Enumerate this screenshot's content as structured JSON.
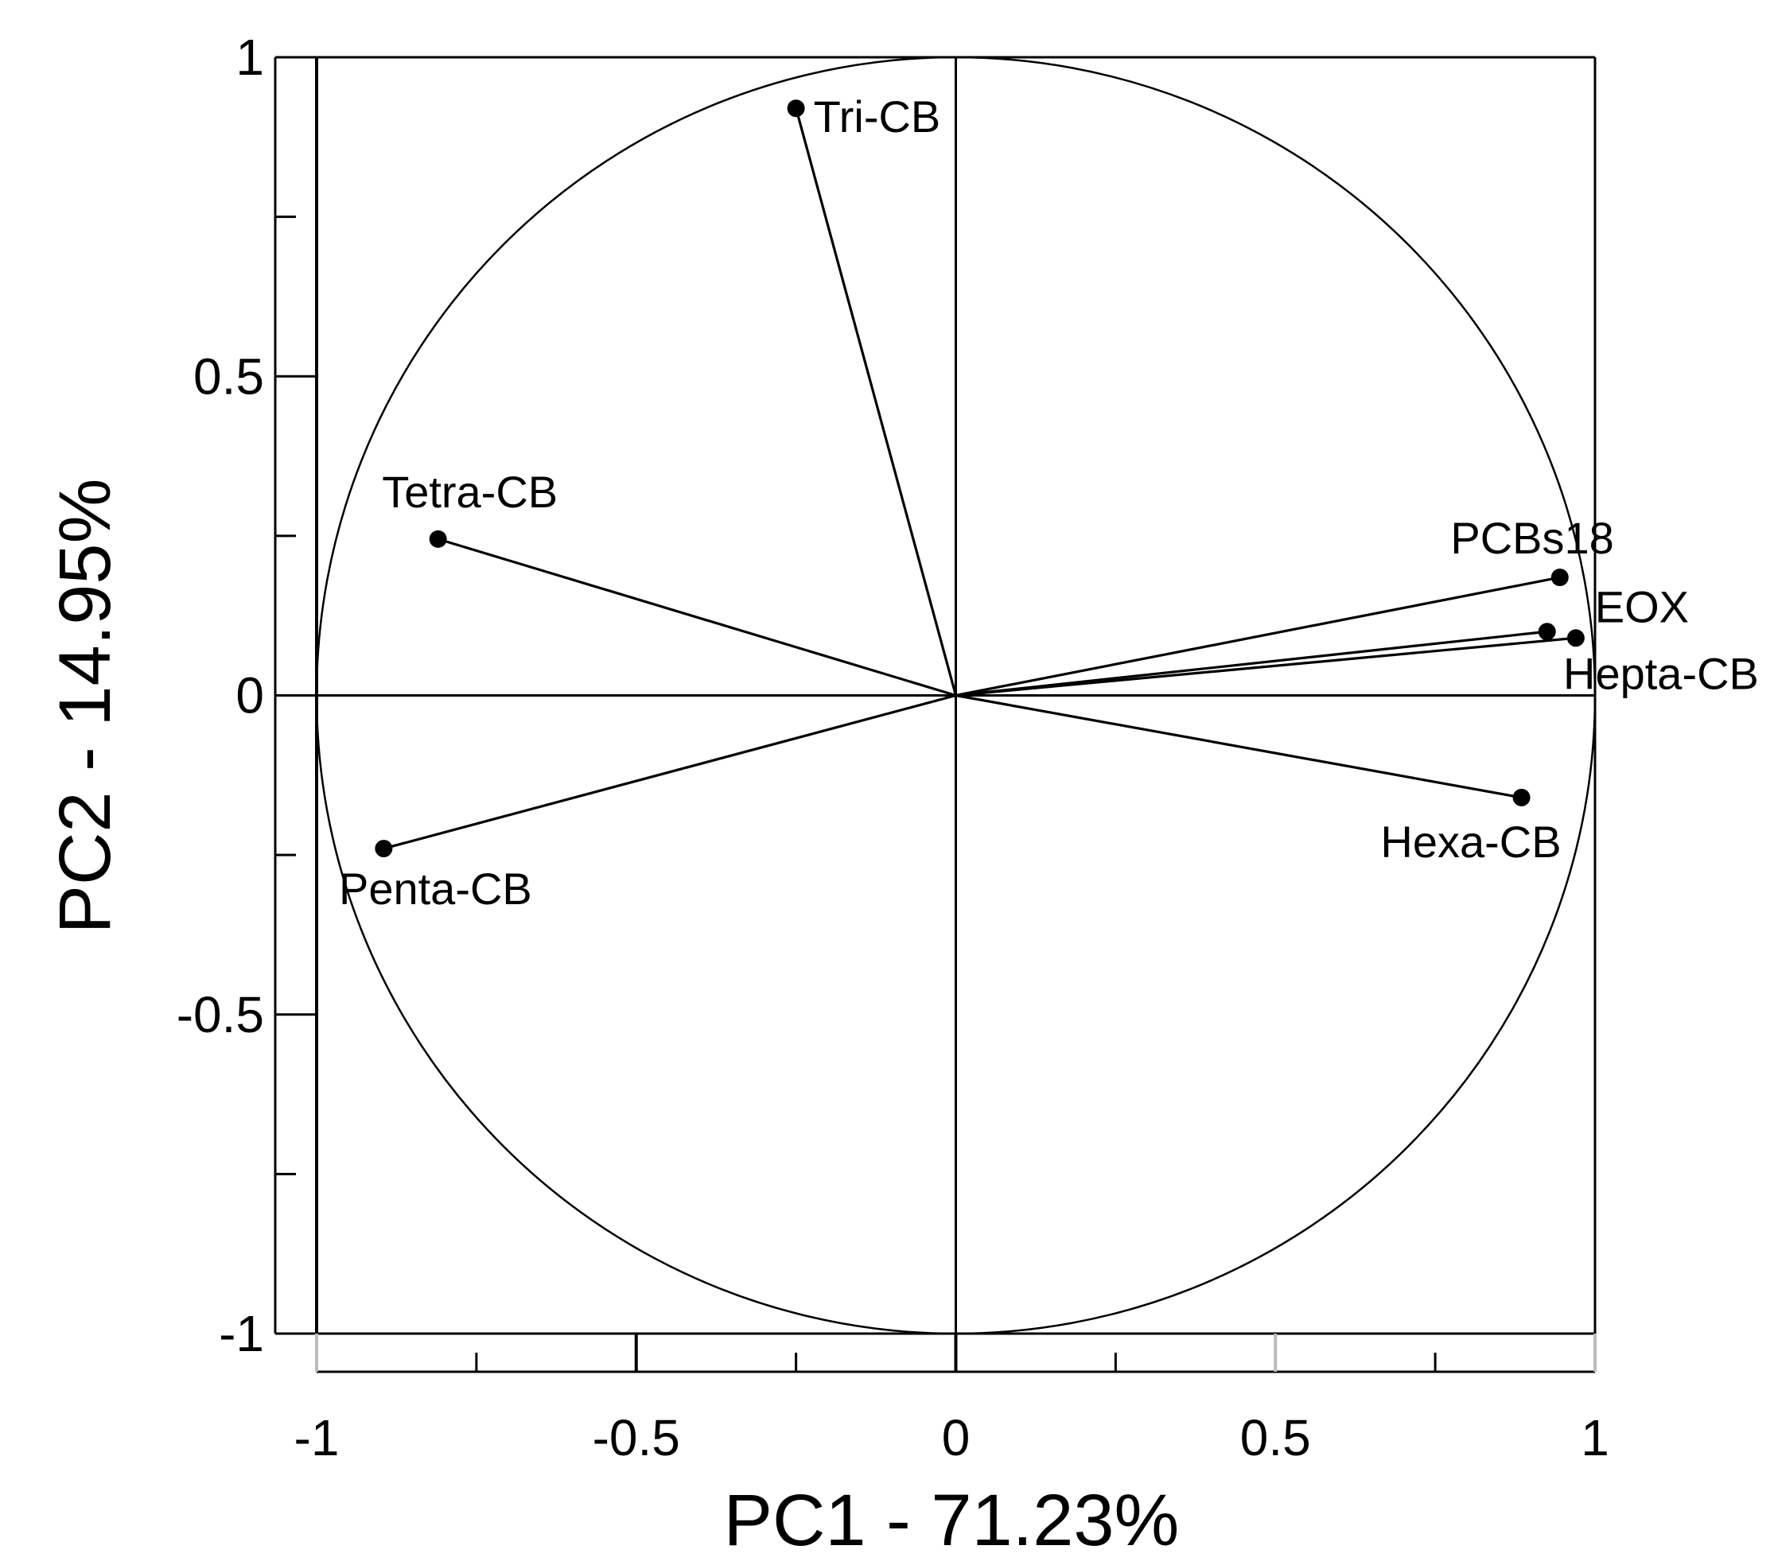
{
  "chart_data": {
    "type": "scatter",
    "subtype": "pca-correlation-circle",
    "xlabel": "PC1 - 71.23%",
    "ylabel": "PC2 - 14.95%",
    "xlim": [
      -1,
      1
    ],
    "ylim": [
      -1,
      1
    ],
    "x_ticks": [
      -1,
      -0.5,
      0,
      0.5,
      1
    ],
    "y_ticks": [
      1,
      0.5,
      0,
      -0.5,
      -1
    ],
    "x_tick_labels": [
      "-1",
      "-0.5",
      "0",
      "0.5",
      "1"
    ],
    "y_tick_labels": [
      "1",
      "0.5",
      "0",
      "-0.5",
      "-1"
    ],
    "unit_circle": true,
    "grid": false,
    "vectors": [
      {
        "name": "Tri-CB",
        "x": -0.25,
        "y": 0.92
      },
      {
        "name": "Tetra-CB",
        "x": -0.81,
        "y": 0.245
      },
      {
        "name": "Penta-CB",
        "x": -0.895,
        "y": -0.24
      },
      {
        "name": "PCBs18",
        "x": 0.945,
        "y": 0.185
      },
      {
        "name": "EOX",
        "x": 0.925,
        "y": 0.1
      },
      {
        "name": "Hepta-CB",
        "x": 0.97,
        "y": 0.09
      },
      {
        "name": "Hexa-CB",
        "x": 0.885,
        "y": -0.16
      }
    ],
    "colors": {
      "line": "#000000",
      "background": "#ffffff"
    }
  }
}
